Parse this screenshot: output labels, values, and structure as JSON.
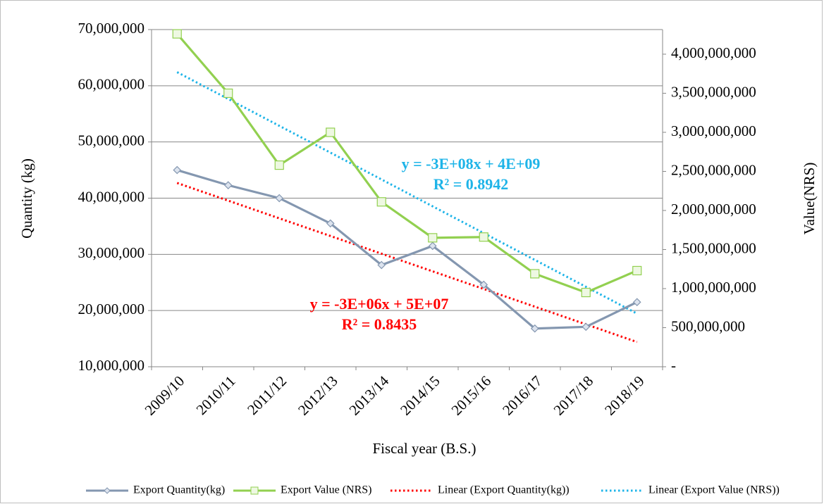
{
  "chart_data": {
    "type": "line",
    "x_label": "Fiscal year (B.S.)",
    "y_label": "Quantity (kg)",
    "y2_label": "Value(NRS)",
    "categories": [
      "2009/10",
      "2010/11",
      "2011/12",
      "2012/13",
      "2013/14",
      "2014/15",
      "2015/16",
      "2016/17",
      "2017/18",
      "2018/19"
    ],
    "series": [
      {
        "name": "Export Quantity(kg)",
        "color": "#8497b0",
        "marker": "diamond",
        "dash": "solid",
        "axis": "y",
        "values": [
          45000000,
          42300000,
          40000000,
          35500000,
          28100000,
          31500000,
          24600000,
          16800000,
          17100000,
          21500000
        ]
      },
      {
        "name": "Export Value (NRS)",
        "color": "#92d050",
        "marker": "square",
        "dash": "solid",
        "axis": "y2",
        "values": [
          4260000000,
          3500000000,
          2580000000,
          3000000000,
          2110000000,
          1650000000,
          1660000000,
          1190000000,
          950000000,
          1230000000
        ]
      },
      {
        "name": "Linear (Export Quantity(kg))",
        "color": "#ff0000",
        "marker": "none",
        "dash": "dotted",
        "axis": "y",
        "values": [
          42700000,
          39560000,
          36410000,
          33270000,
          30120000,
          26980000,
          23840000,
          20690000,
          17550000,
          14400000
        ]
      },
      {
        "name": "Linear (Export Value (NRS))",
        "color": "#1eb4e8",
        "marker": "none",
        "dash": "dotted",
        "axis": "y2",
        "values": [
          3770000000,
          3427000000,
          3083000000,
          2740000000,
          2397000000,
          2053000000,
          1710000000,
          1367000000,
          1023000000,
          680000000
        ]
      }
    ],
    "annotations": [
      {
        "text": "y = -3E+08x + 4E+09",
        "color": "#1eb4e8"
      },
      {
        "text": "R² = 0.8942",
        "color": "#1eb4e8"
      },
      {
        "text": "y = -3E+06x + 5E+07",
        "color": "#ff0000"
      },
      {
        "text": "R² = 0.8435",
        "color": "#ff0000"
      }
    ],
    "ylim": [
      10000000,
      70000000
    ],
    "yticks": [
      {
        "value": 10000000,
        "label": "10,000,000"
      },
      {
        "value": 20000000,
        "label": "20,000,000"
      },
      {
        "value": 30000000,
        "label": "30,000,000"
      },
      {
        "value": 40000000,
        "label": "40,000,000"
      },
      {
        "value": 50000000,
        "label": "50,000,000"
      },
      {
        "value": 60000000,
        "label": "60,000,000"
      },
      {
        "value": 70000000,
        "label": "70,000,000"
      }
    ],
    "y2lim": [
      0,
      4315000000
    ],
    "y2ticks": [
      {
        "value": 0,
        "label": "-"
      },
      {
        "value": 500000000,
        "label": "500,000,000"
      },
      {
        "value": 1000000000,
        "label": "1,000,000,000"
      },
      {
        "value": 1500000000,
        "label": "1,500,000,000"
      },
      {
        "value": 2000000000,
        "label": "2,000,000,000"
      },
      {
        "value": 2500000000,
        "label": "2,500,000,000"
      },
      {
        "value": 3000000000,
        "label": "3,000,000,000"
      },
      {
        "value": 3500000000,
        "label": "3,500,000,000"
      },
      {
        "value": 4000000000,
        "label": "4,000,000,000"
      }
    ],
    "grid": true,
    "legend": "bottom"
  }
}
